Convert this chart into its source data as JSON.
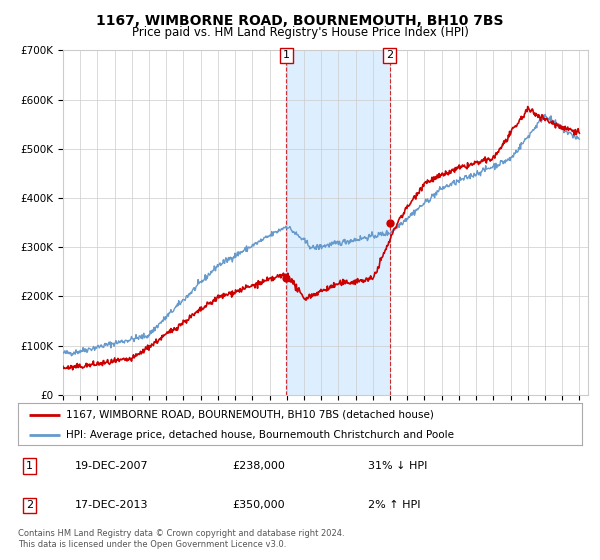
{
  "title": "1167, WIMBORNE ROAD, BOURNEMOUTH, BH10 7BS",
  "subtitle": "Price paid vs. HM Land Registry's House Price Index (HPI)",
  "red_label": "1167, WIMBORNE ROAD, BOURNEMOUTH, BH10 7BS (detached house)",
  "blue_label": "HPI: Average price, detached house, Bournemouth Christchurch and Poole",
  "sale1_date": "19-DEC-2007",
  "sale1_price": 238000,
  "sale1_hpi": "31% ↓ HPI",
  "sale1_year": 2007.97,
  "sale2_date": "17-DEC-2013",
  "sale2_price": 350000,
  "sale2_hpi": "2% ↑ HPI",
  "sale2_year": 2013.97,
  "footer1": "Contains HM Land Registry data © Crown copyright and database right 2024.",
  "footer2": "This data is licensed under the Open Government Licence v3.0.",
  "ylim": [
    0,
    700000
  ],
  "xlim_start": 1995.0,
  "xlim_end": 2025.5,
  "red_color": "#cc0000",
  "blue_color": "#6699cc",
  "shading_color": "#ddeeff",
  "grid_color": "#cccccc",
  "background_color": "#ffffff"
}
